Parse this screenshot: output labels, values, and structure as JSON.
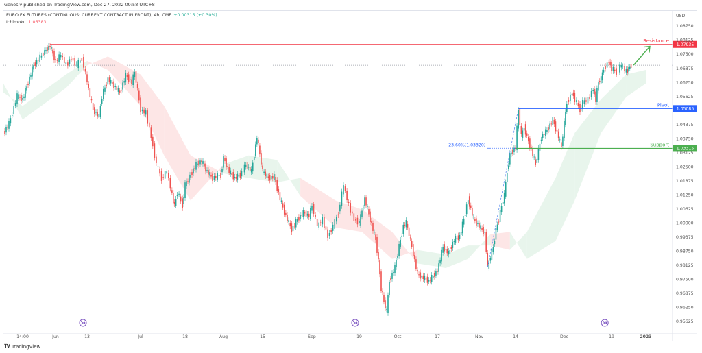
{
  "header": {
    "publisher": "Genesiv published on TradingView.com, Dec 27, 2022 09:58 UTC+8",
    "symbol": "EURO FX FUTURES (CONTINUOUS: CURRENT CONTRACT IN FRONT), 4h, CME",
    "change": "+0.00315 (+0.30%)",
    "indicator_name": "Ichimoku",
    "indicator_value": "1.06383"
  },
  "footer": {
    "logo_text": "TradingView"
  },
  "colors": {
    "up": "#26a69a",
    "down": "#ef5350",
    "resistance": "#f23645",
    "pivot": "#2962ff",
    "support": "#4caf50",
    "cloud_bull": "#e6f4ea",
    "cloud_bear": "#fde3e3",
    "event_icon": "#7e57c2"
  },
  "chart_data": {
    "type": "candlestick",
    "title": "",
    "currency_label": "USD",
    "ylim": [
      0.954,
      1.0915
    ],
    "y_ticks": [
      "1.08750",
      "1.08125",
      "1.07500",
      "1.06875",
      "1.06250",
      "1.05625",
      "1.04375",
      "1.03750",
      "1.03125",
      "1.02500",
      "1.01875",
      "1.01250",
      "1.00625",
      "1.00000",
      "0.99375",
      "0.98750",
      "0.98125",
      "0.97500",
      "0.96875",
      "0.96250",
      "0.95625"
    ],
    "x_ticks": [
      {
        "label": "14:00",
        "date": "2022-05-26"
      },
      {
        "label": "Jun",
        "date": "2022-06-01"
      },
      {
        "label": "13",
        "date": "2022-06-13"
      },
      {
        "label": "Jul",
        "date": "2022-07-01"
      },
      {
        "label": "18",
        "date": "2022-07-18"
      },
      {
        "label": "Aug",
        "date": "2022-08-01"
      },
      {
        "label": "15",
        "date": "2022-08-15"
      },
      {
        "label": "Sep",
        "date": "2022-09-01"
      },
      {
        "label": "19",
        "date": "2022-09-19"
      },
      {
        "label": "Oct",
        "date": "2022-10-03"
      },
      {
        "label": "17",
        "date": "2022-10-17"
      },
      {
        "label": "Nov",
        "date": "2022-11-01"
      },
      {
        "label": "14",
        "date": "2022-11-14"
      },
      {
        "label": "Dec",
        "date": "2022-12-01"
      },
      {
        "label": "19",
        "date": "2022-12-19"
      },
      {
        "label": "2023",
        "date": "2023-01-02",
        "bold": true
      }
    ],
    "price": [
      [
        "2022-05-19",
        1.0397
      ],
      [
        "2022-05-21",
        1.0442
      ],
      [
        "2022-05-24",
        1.0564
      ],
      [
        "2022-05-26",
        1.0549
      ],
      [
        "2022-05-27",
        1.0625
      ],
      [
        "2022-05-28",
        1.0701
      ],
      [
        "2022-05-30",
        1.0762
      ],
      [
        "2022-05-31",
        1.0787
      ],
      [
        "2022-06-01",
        1.0717
      ],
      [
        "2022-06-03",
        1.0747
      ],
      [
        "2022-06-05",
        1.0701
      ],
      [
        "2022-06-07",
        1.0732
      ],
      [
        "2022-06-09",
        1.0701
      ],
      [
        "2022-06-11",
        1.0732
      ],
      [
        "2022-06-13",
        1.0625
      ],
      [
        "2022-06-15",
        1.0503
      ],
      [
        "2022-06-17",
        1.0473
      ],
      [
        "2022-06-18",
        1.0564
      ],
      [
        "2022-06-20",
        1.064
      ],
      [
        "2022-06-22",
        1.061
      ],
      [
        "2022-06-24",
        1.058
      ],
      [
        "2022-06-26",
        1.0656
      ],
      [
        "2022-06-28",
        1.0625
      ],
      [
        "2022-06-29",
        1.0671
      ],
      [
        "2022-07-01",
        1.0503
      ],
      [
        "2022-07-03",
        1.0488
      ],
      [
        "2022-07-05",
        1.0382
      ],
      [
        "2022-07-07",
        1.026
      ],
      [
        "2022-07-09",
        1.0199
      ],
      [
        "2022-07-11",
        1.0229
      ],
      [
        "2022-07-13",
        1.0123
      ],
      [
        "2022-07-14",
        1.0077
      ],
      [
        "2022-07-15",
        1.0138
      ],
      [
        "2022-07-17",
        1.0077
      ],
      [
        "2022-07-18",
        1.0168
      ],
      [
        "2022-07-20",
        1.0214
      ],
      [
        "2022-07-22",
        1.026
      ],
      [
        "2022-07-24",
        1.0275
      ],
      [
        "2022-07-26",
        1.0229
      ],
      [
        "2022-07-28",
        1.0199
      ],
      [
        "2022-07-31",
        1.0214
      ],
      [
        "2022-08-01",
        1.029
      ],
      [
        "2022-08-03",
        1.0229
      ],
      [
        "2022-08-05",
        1.0199
      ],
      [
        "2022-08-07",
        1.0214
      ],
      [
        "2022-08-09",
        1.026
      ],
      [
        "2022-08-11",
        1.0229
      ],
      [
        "2022-08-13",
        1.0382
      ],
      [
        "2022-08-14",
        1.0305
      ],
      [
        "2022-08-15",
        1.0229
      ],
      [
        "2022-08-17",
        1.0199
      ],
      [
        "2022-08-19",
        1.0205
      ],
      [
        "2022-08-21",
        1.0107
      ],
      [
        "2022-08-23",
        1.0031
      ],
      [
        "2022-08-25",
        0.997
      ],
      [
        "2022-08-27",
        1.0016
      ],
      [
        "2022-08-29",
        1.0046
      ],
      [
        "2022-08-31",
        1.0031
      ],
      [
        "2022-09-01",
        1.0077
      ],
      [
        "2022-09-03",
        0.9986
      ],
      [
        "2022-09-05",
        1.0016
      ],
      [
        "2022-09-07",
        0.994
      ],
      [
        "2022-09-09",
        0.9986
      ],
      [
        "2022-09-11",
        1.0046
      ],
      [
        "2022-09-13",
        1.0168
      ],
      [
        "2022-09-15",
        1.0077
      ],
      [
        "2022-09-17",
        1.0016
      ],
      [
        "2022-09-19",
        1.0001
      ],
      [
        "2022-09-21",
        1.0107
      ],
      [
        "2022-09-23",
        1.0016
      ],
      [
        "2022-09-25",
        0.9925
      ],
      [
        "2022-09-26",
        0.9833
      ],
      [
        "2022-09-27",
        0.9711
      ],
      [
        "2022-09-28",
        0.965
      ],
      [
        "2022-09-29",
        0.9605
      ],
      [
        "2022-09-30",
        0.9742
      ],
      [
        "2022-10-02",
        0.9803
      ],
      [
        "2022-10-03",
        0.9864
      ],
      [
        "2022-10-05",
        0.9986
      ],
      [
        "2022-10-06",
        1.0001
      ],
      [
        "2022-10-08",
        0.9894
      ],
      [
        "2022-10-10",
        0.9772
      ],
      [
        "2022-10-12",
        0.9757
      ],
      [
        "2022-10-14",
        0.9742
      ],
      [
        "2022-10-17",
        0.9788
      ],
      [
        "2022-10-19",
        0.9894
      ],
      [
        "2022-10-21",
        0.9864
      ],
      [
        "2022-10-23",
        0.9925
      ],
      [
        "2022-10-25",
        0.994
      ],
      [
        "2022-10-27",
        1.0046
      ],
      [
        "2022-10-28",
        1.0107
      ],
      [
        "2022-10-30",
        1.0016
      ],
      [
        "2022-11-01",
        0.9986
      ],
      [
        "2022-11-03",
        0.9955
      ],
      [
        "2022-11-04",
        0.9803
      ],
      [
        "2022-11-06",
        0.9894
      ],
      [
        "2022-11-07",
        0.997
      ],
      [
        "2022-11-08",
        1.0016
      ],
      [
        "2022-11-09",
        1.0077
      ],
      [
        "2022-11-10",
        1.0123
      ],
      [
        "2022-11-11",
        1.0229
      ],
      [
        "2022-11-12",
        1.0305
      ],
      [
        "2022-11-14",
        1.0336
      ],
      [
        "2022-11-15",
        1.0503
      ],
      [
        "2022-11-16",
        1.0382
      ],
      [
        "2022-11-17",
        1.0427
      ],
      [
        "2022-11-18",
        1.0382
      ],
      [
        "2022-11-20",
        1.0305
      ],
      [
        "2022-11-21",
        1.026
      ],
      [
        "2022-11-23",
        1.0382
      ],
      [
        "2022-11-25",
        1.0412
      ],
      [
        "2022-11-27",
        1.0458
      ],
      [
        "2022-11-29",
        1.0382
      ],
      [
        "2022-11-30",
        1.0336
      ],
      [
        "2022-12-01",
        1.0442
      ],
      [
        "2022-12-02",
        1.0534
      ],
      [
        "2022-12-04",
        1.058
      ],
      [
        "2022-12-05",
        1.0549
      ],
      [
        "2022-12-07",
        1.0503
      ],
      [
        "2022-12-08",
        1.0534
      ],
      [
        "2022-12-10",
        1.0549
      ],
      [
        "2022-12-12",
        1.0595
      ],
      [
        "2022-12-13",
        1.0549
      ],
      [
        "2022-12-14",
        1.0625
      ],
      [
        "2022-12-15",
        1.064
      ],
      [
        "2022-12-16",
        1.0686
      ],
      [
        "2022-12-18",
        1.0717
      ],
      [
        "2022-12-19",
        1.0686
      ],
      [
        "2022-12-21",
        1.0671
      ],
      [
        "2022-12-23",
        1.0701
      ],
      [
        "2022-12-25",
        1.0671
      ],
      [
        "2022-12-26",
        1.0686
      ],
      [
        "2022-12-27",
        1.0701
      ]
    ],
    "ichimoku_cloud": [
      [
        "2022-05-19",
        1.058,
        1.062
      ],
      [
        "2022-05-26",
        1.052,
        1.046
      ],
      [
        "2022-06-05",
        1.066,
        1.06
      ],
      [
        "2022-06-13",
        1.072,
        1.07
      ],
      [
        "2022-06-20",
        1.068,
        1.074
      ],
      [
        "2022-07-01",
        1.052,
        1.066
      ],
      [
        "2022-07-10",
        1.03,
        1.052
      ],
      [
        "2022-07-20",
        1.01,
        1.03
      ],
      [
        "2022-08-01",
        1.026,
        1.022
      ],
      [
        "2022-08-10",
        1.03,
        1.02
      ],
      [
        "2022-08-20",
        1.028,
        1.018
      ],
      [
        "2022-08-28",
        1.012,
        1.02
      ],
      [
        "2022-09-10",
        0.998,
        1.01
      ],
      [
        "2022-09-20",
        0.996,
        1.006
      ],
      [
        "2022-10-01",
        0.984,
        0.996
      ],
      [
        "2022-10-10",
        0.988,
        0.982
      ],
      [
        "2022-10-20",
        0.986,
        0.98
      ],
      [
        "2022-10-28",
        0.99,
        0.984
      ],
      [
        "2022-11-05",
        0.99,
        0.995
      ],
      [
        "2022-11-12",
        0.988,
        0.996
      ],
      [
        "2022-11-18",
        0.996,
        0.984
      ],
      [
        "2022-11-28",
        1.02,
        0.992
      ],
      [
        "2022-12-05",
        1.04,
        1.01
      ],
      [
        "2022-12-15",
        1.055,
        1.04
      ],
      [
        "2022-12-25",
        1.066,
        1.056
      ],
      [
        "2023-01-02",
        1.068,
        1.062
      ]
    ],
    "levels": [
      {
        "name": "Resistance",
        "value": 1.07935,
        "label": "1.07935",
        "from": "2022-05-31",
        "color_key": "resistance"
      },
      {
        "name": "Pivot",
        "value": 1.05085,
        "label": "1.05085",
        "from": "2022-11-15",
        "color_key": "pivot"
      },
      {
        "name": "Support",
        "value": 1.03315,
        "label": "1.03315",
        "from": "2022-11-14",
        "color_key": "support"
      }
    ],
    "fib": {
      "label": "23.60%(1.03320)",
      "value": 1.0332,
      "from": "2022-11-04",
      "to": "2022-11-14"
    },
    "last_price_line": 1.0701,
    "projection_arrow": {
      "from": [
        "2022-12-28",
        1.0701
      ],
      "to": [
        "2023-01-02",
        1.0785
      ]
    },
    "event_markers": [
      "2022-06-13",
      "2022-09-19",
      "2022-12-18"
    ]
  }
}
